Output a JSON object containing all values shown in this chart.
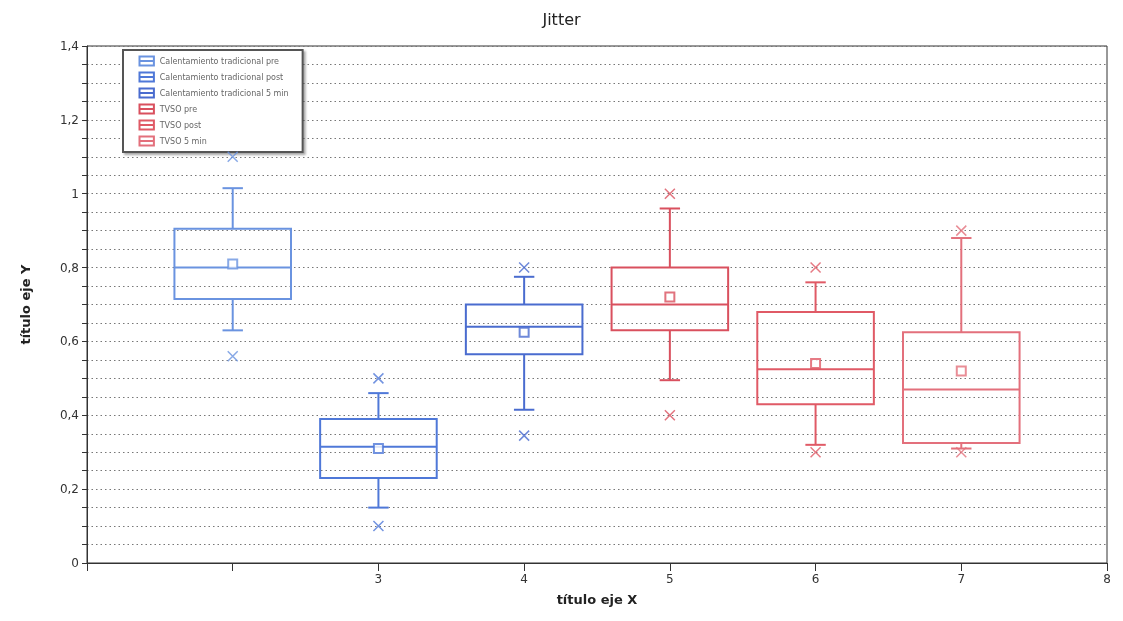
{
  "chart_data": {
    "type": "box",
    "title": "Jitter",
    "xlabel": "título eje X",
    "ylabel": "título eje Y",
    "xlim": [
      1,
      8
    ],
    "xticks": [
      {
        "value": 1,
        "label": null
      },
      {
        "value": 2,
        "label": null
      },
      3,
      4,
      5,
      6,
      7,
      8
    ],
    "ylim": [
      0,
      1.4
    ],
    "yticks": [
      0,
      {
        "value": 0.05,
        "label": null
      },
      {
        "value": 0.1,
        "label": null
      },
      {
        "value": 0.15,
        "label": null
      },
      {
        "value": 0.2,
        "label": "0,2"
      },
      {
        "value": 0.25,
        "label": null
      },
      {
        "value": 0.3,
        "label": null
      },
      {
        "value": 0.35,
        "label": null
      },
      {
        "value": 0.4,
        "label": "0,4"
      },
      {
        "value": 0.45,
        "label": null
      },
      {
        "value": 0.5,
        "label": null
      },
      {
        "value": 0.55,
        "label": null
      },
      {
        "value": 0.6,
        "label": "0,6"
      },
      {
        "value": 0.65,
        "label": null
      },
      {
        "value": 0.7,
        "label": null
      },
      {
        "value": 0.75,
        "label": null
      },
      {
        "value": 0.8,
        "label": "0,8"
      },
      {
        "value": 0.85,
        "label": null
      },
      {
        "value": 0.9,
        "label": null
      },
      {
        "value": 0.95,
        "label": null
      },
      1,
      {
        "value": 1.05,
        "label": null
      },
      {
        "value": 1.1,
        "label": null
      },
      {
        "value": 1.15,
        "label": null
      },
      {
        "value": 1.2,
        "label": "1,2"
      },
      {
        "value": 1.25,
        "label": null
      },
      {
        "value": 1.3,
        "label": null
      },
      {
        "value": 1.35,
        "label": null
      },
      {
        "value": 1.4,
        "label": "1,4"
      }
    ],
    "grid": "y",
    "legend": "top left",
    "series": [
      {
        "name": "Calentamiento tradicional pre",
        "color": "#6a93e0",
        "x": [
          2
        ],
        "boxes": [
          {
            "low": 0.63,
            "q1": 0.715,
            "median": 0.8,
            "q3": 0.905,
            "high": 1.015,
            "mean": 0.81,
            "outliers": [
              1.1,
              0.56
            ]
          }
        ]
      },
      {
        "name": "Calentamiento tradicional post",
        "color": "#4f78d8",
        "x": [
          3
        ],
        "boxes": [
          {
            "low": 0.15,
            "q1": 0.23,
            "median": 0.315,
            "q3": 0.39,
            "high": 0.46,
            "mean": 0.31,
            "outliers": [
              0.5,
              0.1
            ]
          }
        ]
      },
      {
        "name": "Calentamiento tradicional 5 min",
        "color": "#4a6ccf",
        "x": [
          4
        ],
        "boxes": [
          {
            "low": 0.415,
            "q1": 0.565,
            "median": 0.64,
            "q3": 0.7,
            "high": 0.775,
            "mean": 0.625,
            "outliers": [
              0.8,
              0.345
            ]
          }
        ]
      },
      {
        "name": "TVSO pre",
        "color": "#d9505e",
        "x": [
          5
        ],
        "boxes": [
          {
            "low": 0.495,
            "q1": 0.63,
            "median": 0.7,
            "q3": 0.8,
            "high": 0.96,
            "mean": 0.72,
            "outliers": [
              1.0,
              0.4
            ]
          }
        ]
      },
      {
        "name": "TVSO post",
        "color": "#e05a66",
        "x": [
          6
        ],
        "boxes": [
          {
            "low": 0.32,
            "q1": 0.43,
            "median": 0.525,
            "q3": 0.68,
            "high": 0.76,
            "mean": 0.54,
            "outliers": [
              0.8,
              0.3
            ]
          }
        ]
      },
      {
        "name": "TVSO 5 min",
        "color": "#e3707c",
        "x": [
          7
        ],
        "boxes": [
          {
            "low": 0.31,
            "q1": 0.325,
            "median": 0.47,
            "q3": 0.625,
            "high": 0.88,
            "mean": 0.52,
            "outliers": [
              0.9,
              0.3
            ]
          }
        ]
      }
    ]
  }
}
